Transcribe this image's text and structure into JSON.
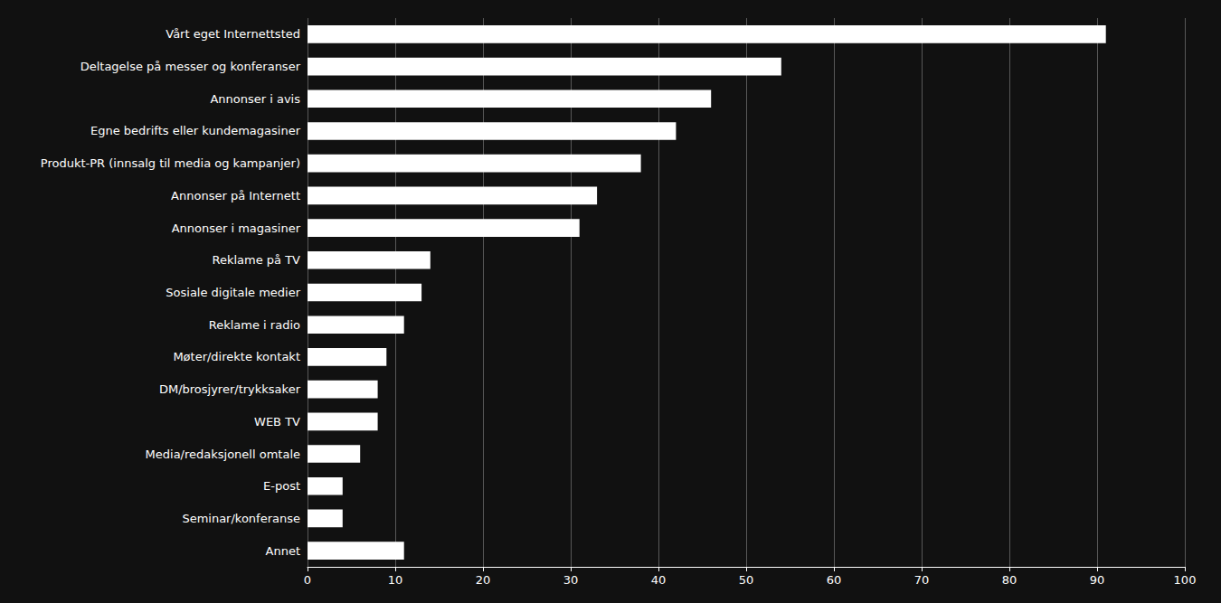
{
  "chart_data": {
    "type": "bar",
    "orientation": "horizontal",
    "categories": [
      "Vårt eget Internettsted",
      "Deltagelse på messer og konferanser",
      "Annonser i avis",
      "Egne bedrifts eller kundemagasiner",
      "Produkt-PR (innsalg til media og kampanjer)",
      "Annonser på Internett",
      "Annonser i magasiner",
      "Reklame på TV",
      "Sosiale digitale medier",
      "Reklame i radio",
      "Møter/direkte kontakt",
      "DM/brosjyrer/trykksaker",
      "WEB TV",
      "Media/redaksjonell omtale",
      "E-post",
      "Seminar/konferanse",
      "Annet"
    ],
    "values": [
      91,
      54,
      46,
      42,
      38,
      33,
      31,
      14,
      13,
      11,
      9,
      8,
      8,
      6,
      4,
      4,
      11
    ],
    "color": "#ffffff",
    "xlim": [
      0,
      100
    ],
    "xticks": [
      0,
      10,
      20,
      30,
      40,
      50,
      60,
      70,
      80,
      90,
      100
    ],
    "grid": true
  }
}
